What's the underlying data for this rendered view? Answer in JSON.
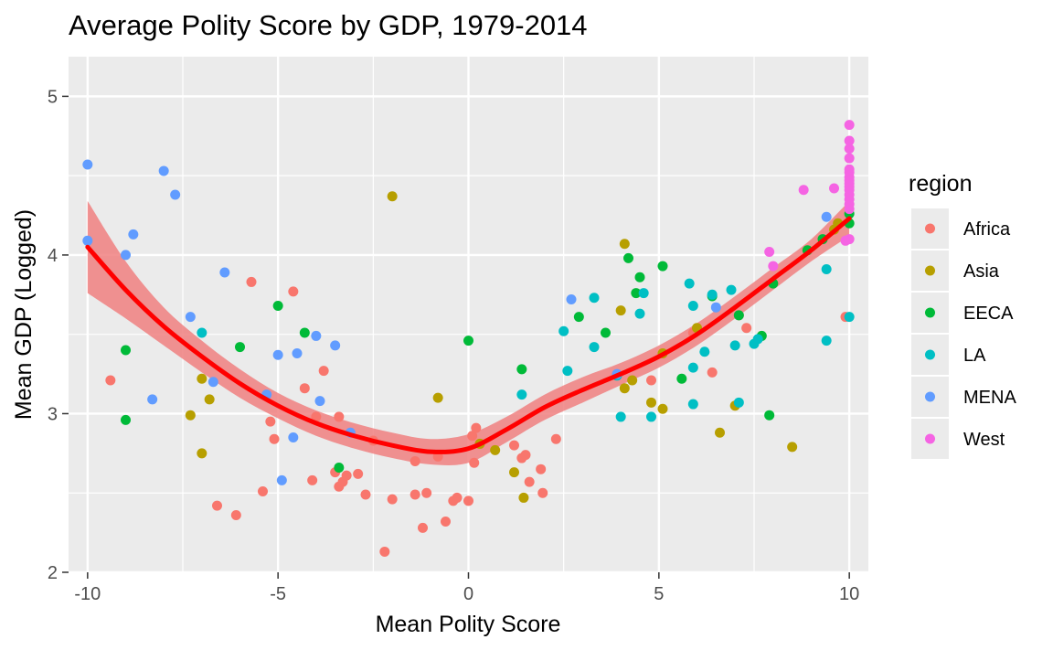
{
  "chart_data": {
    "type": "scatter",
    "title": "Average Polity Score by GDP, 1979-2014",
    "xlabel": "Mean Polity Score",
    "ylabel": "Mean GDP (Logged)",
    "xlim": [
      -10.5,
      10.5
    ],
    "ylim": [
      2.0,
      5.25
    ],
    "x_ticks": [
      -10,
      -5,
      0,
      5,
      10
    ],
    "y_ticks": [
      2,
      3,
      4,
      5
    ],
    "x_tick_labels": [
      "-10",
      "-5",
      "0",
      "5",
      "10"
    ],
    "y_tick_labels": [
      "2",
      "3",
      "4",
      "5"
    ],
    "grid": true,
    "legend": {
      "title": "region",
      "placement": "right",
      "entries": [
        "Africa",
        "Asia",
        "EECA",
        "LA",
        "MENA",
        "West"
      ]
    },
    "colors": {
      "Africa": "#F8766D",
      "Asia": "#B79F00",
      "EECA": "#00BA38",
      "LA": "#00BFC4",
      "MENA": "#619CFF",
      "West": "#F564E3",
      "smooth_line": "#FF0000",
      "smooth_band": "#F08080",
      "panel": "#EBEBEB",
      "grid": "#FFFFFF"
    },
    "series": [
      {
        "name": "Africa",
        "points": [
          [
            -9.4,
            3.21
          ],
          [
            -5.7,
            3.83
          ],
          [
            -4.6,
            3.77
          ],
          [
            -5.2,
            2.95
          ],
          [
            -5.1,
            2.84
          ],
          [
            -4.3,
            3.16
          ],
          [
            -4.0,
            2.98
          ],
          [
            -3.8,
            3.27
          ],
          [
            -3.5,
            2.63
          ],
          [
            -3.4,
            2.98
          ],
          [
            -3.4,
            2.54
          ],
          [
            -3.3,
            2.57
          ],
          [
            -3.2,
            2.61
          ],
          [
            -2.9,
            2.62
          ],
          [
            -2.7,
            2.49
          ],
          [
            -2.5,
            2.83
          ],
          [
            -2.2,
            2.13
          ],
          [
            -2.0,
            2.46
          ],
          [
            -1.4,
            2.7
          ],
          [
            -1.4,
            2.49
          ],
          [
            -1.2,
            2.28
          ],
          [
            -1.1,
            2.5
          ],
          [
            -0.8,
            2.73
          ],
          [
            -0.6,
            2.32
          ],
          [
            -0.4,
            2.45
          ],
          [
            -0.3,
            2.47
          ],
          [
            0.0,
            2.45
          ],
          [
            0.1,
            2.86
          ],
          [
            0.15,
            2.69
          ],
          [
            0.2,
            2.91
          ],
          [
            1.2,
            2.8
          ],
          [
            1.4,
            2.72
          ],
          [
            1.5,
            2.74
          ],
          [
            1.6,
            2.57
          ],
          [
            1.9,
            2.65
          ],
          [
            1.95,
            2.5
          ],
          [
            2.3,
            2.84
          ],
          [
            -6.6,
            2.42
          ],
          [
            -6.1,
            2.36
          ],
          [
            -5.4,
            2.51
          ],
          [
            -4.1,
            2.58
          ],
          [
            4.8,
            3.21
          ],
          [
            5.9,
            3.51
          ],
          [
            6.4,
            3.26
          ],
          [
            7.1,
            3.62
          ],
          [
            7.3,
            3.54
          ],
          [
            9.9,
            3.61
          ]
        ]
      },
      {
        "name": "Asia",
        "points": [
          [
            -7.3,
            2.99
          ],
          [
            -7.0,
            3.22
          ],
          [
            -7.0,
            2.75
          ],
          [
            -6.8,
            3.09
          ],
          [
            -2.0,
            4.37
          ],
          [
            -0.8,
            3.1
          ],
          [
            0.3,
            2.81
          ],
          [
            0.7,
            2.77
          ],
          [
            1.2,
            2.63
          ],
          [
            1.45,
            2.47
          ],
          [
            4.0,
            3.65
          ],
          [
            4.1,
            4.07
          ],
          [
            4.1,
            3.16
          ],
          [
            4.3,
            3.21
          ],
          [
            4.8,
            3.07
          ],
          [
            5.1,
            3.03
          ],
          [
            5.1,
            3.38
          ],
          [
            6.0,
            3.54
          ],
          [
            6.6,
            2.88
          ],
          [
            7.0,
            3.05
          ],
          [
            8.5,
            2.79
          ],
          [
            9.6,
            4.16
          ],
          [
            9.7,
            4.2
          ]
        ]
      },
      {
        "name": "EECA",
        "points": [
          [
            -9.0,
            3.4
          ],
          [
            -9.0,
            2.96
          ],
          [
            -6.0,
            3.42
          ],
          [
            -5.0,
            3.68
          ],
          [
            -4.3,
            3.51
          ],
          [
            -3.4,
            2.66
          ],
          [
            0.0,
            3.46
          ],
          [
            1.4,
            3.28
          ],
          [
            2.9,
            3.61
          ],
          [
            3.6,
            3.51
          ],
          [
            4.2,
            3.98
          ],
          [
            4.4,
            3.76
          ],
          [
            4.5,
            3.86
          ],
          [
            5.1,
            3.93
          ],
          [
            5.6,
            3.22
          ],
          [
            6.4,
            3.74
          ],
          [
            7.1,
            3.62
          ],
          [
            7.7,
            3.49
          ],
          [
            7.9,
            2.99
          ],
          [
            8.0,
            3.82
          ],
          [
            8.9,
            4.03
          ],
          [
            9.3,
            4.1
          ],
          [
            10.0,
            4.26
          ],
          [
            10.0,
            4.2
          ]
        ]
      },
      {
        "name": "LA",
        "points": [
          [
            -7.0,
            3.51
          ],
          [
            1.4,
            3.12
          ],
          [
            2.5,
            3.52
          ],
          [
            2.6,
            3.27
          ],
          [
            3.3,
            3.73
          ],
          [
            3.3,
            3.42
          ],
          [
            3.9,
            3.24
          ],
          [
            4.0,
            2.98
          ],
          [
            4.5,
            3.63
          ],
          [
            4.6,
            3.76
          ],
          [
            4.8,
            2.98
          ],
          [
            5.8,
            3.82
          ],
          [
            5.9,
            3.68
          ],
          [
            5.9,
            3.29
          ],
          [
            5.9,
            3.06
          ],
          [
            6.2,
            3.39
          ],
          [
            6.4,
            3.75
          ],
          [
            6.9,
            3.78
          ],
          [
            7.0,
            3.43
          ],
          [
            7.1,
            3.07
          ],
          [
            7.5,
            3.44
          ],
          [
            7.6,
            3.47
          ],
          [
            9.4,
            3.91
          ],
          [
            9.4,
            3.46
          ],
          [
            10.0,
            3.61
          ]
        ]
      },
      {
        "name": "MENA",
        "points": [
          [
            -10.0,
            4.57
          ],
          [
            -10.0,
            4.09
          ],
          [
            -9.0,
            4.0
          ],
          [
            -8.8,
            4.13
          ],
          [
            -8.3,
            3.09
          ],
          [
            -8.0,
            4.53
          ],
          [
            -7.7,
            4.38
          ],
          [
            -7.3,
            3.61
          ],
          [
            -6.4,
            3.89
          ],
          [
            -5.0,
            3.37
          ],
          [
            -4.9,
            2.58
          ],
          [
            -4.6,
            2.85
          ],
          [
            -4.5,
            3.38
          ],
          [
            -4.0,
            3.49
          ],
          [
            -3.9,
            3.08
          ],
          [
            -3.5,
            3.43
          ],
          [
            -3.1,
            2.88
          ],
          [
            -6.7,
            3.2
          ],
          [
            -5.3,
            3.12
          ],
          [
            2.7,
            3.72
          ],
          [
            3.9,
            3.25
          ],
          [
            6.5,
            3.67
          ],
          [
            9.4,
            4.24
          ]
        ]
      },
      {
        "name": "West",
        "points": [
          [
            7.9,
            4.02
          ],
          [
            8.0,
            3.93
          ],
          [
            8.8,
            4.41
          ],
          [
            9.6,
            4.42
          ],
          [
            9.9,
            4.09
          ],
          [
            10.0,
            4.1
          ],
          [
            10.0,
            4.82
          ],
          [
            10.0,
            4.72
          ],
          [
            10.0,
            4.67
          ],
          [
            10.0,
            4.61
          ],
          [
            10.0,
            4.54
          ],
          [
            10.0,
            4.52
          ],
          [
            10.0,
            4.49
          ],
          [
            10.0,
            4.47
          ],
          [
            10.0,
            4.45
          ],
          [
            10.0,
            4.43
          ],
          [
            10.0,
            4.41
          ],
          [
            10.0,
            4.38
          ],
          [
            10.0,
            4.35
          ],
          [
            10.0,
            4.32
          ],
          [
            10.0,
            4.29
          ]
        ]
      }
    ],
    "smooth": {
      "x": [
        -10,
        -9,
        -8,
        -7,
        -6,
        -5,
        -4,
        -3,
        -2,
        -1,
        0,
        1,
        2,
        3,
        4,
        5,
        6,
        7,
        8,
        9,
        10
      ],
      "y": [
        4.05,
        3.78,
        3.55,
        3.36,
        3.19,
        3.05,
        2.94,
        2.86,
        2.8,
        2.76,
        2.78,
        2.9,
        3.04,
        3.15,
        3.25,
        3.36,
        3.5,
        3.67,
        3.85,
        4.03,
        4.23
      ],
      "lower": [
        3.76,
        3.6,
        3.43,
        3.26,
        3.1,
        2.97,
        2.86,
        2.78,
        2.72,
        2.68,
        2.69,
        2.82,
        2.96,
        3.07,
        3.18,
        3.29,
        3.43,
        3.6,
        3.78,
        3.96,
        4.12
      ],
      "upper": [
        4.34,
        3.96,
        3.67,
        3.46,
        3.28,
        3.13,
        3.02,
        2.94,
        2.88,
        2.84,
        2.87,
        2.98,
        3.12,
        3.23,
        3.32,
        3.43,
        3.57,
        3.74,
        3.92,
        4.1,
        4.34
      ]
    }
  }
}
